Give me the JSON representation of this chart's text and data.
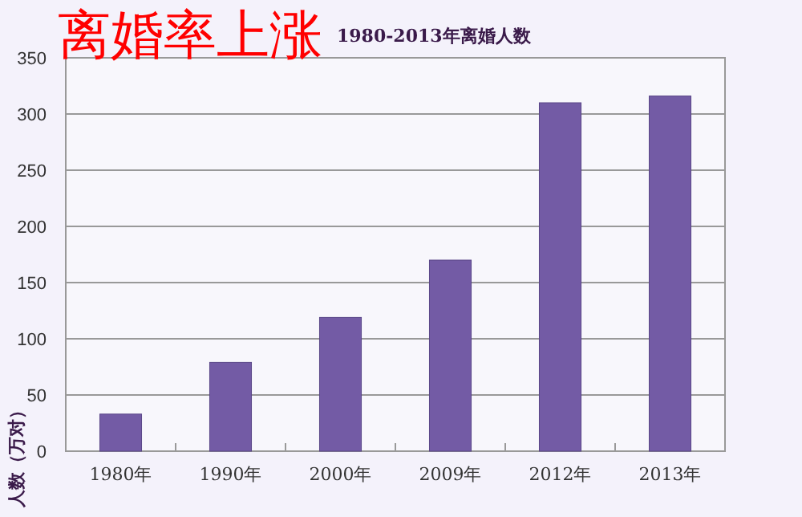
{
  "chart_data": {
    "type": "bar",
    "title": "离婚率上涨",
    "subtitle": "1980-2013年离婚人数",
    "ylabel": "人数（万对）",
    "categories": [
      "1980年",
      "1990年",
      "2000年",
      "2009年",
      "2012年",
      "2013年"
    ],
    "values": [
      33,
      79,
      119,
      170,
      310,
      316
    ],
    "color": "#735ba5",
    "ylim": [
      0,
      350
    ],
    "yticks": [
      0,
      50,
      100,
      150,
      200,
      250,
      300,
      350
    ],
    "grid": "y"
  }
}
